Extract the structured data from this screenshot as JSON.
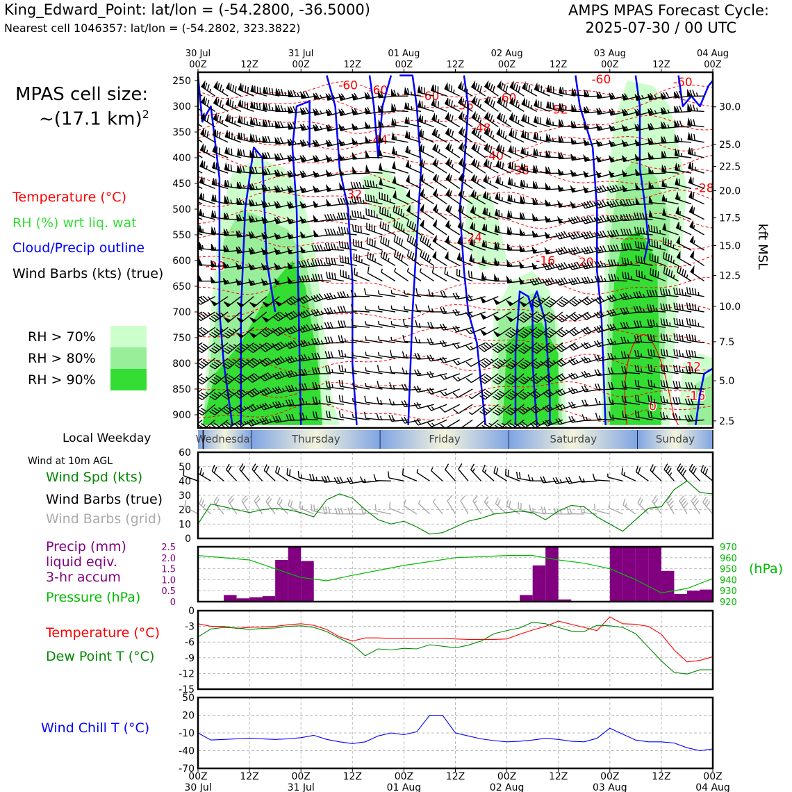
{
  "header": {
    "station": "King_Edward_Point: lat/lon = (-54.2800, -36.5000)",
    "nearest": "Nearest cell 1046357: lat/lon = (-54.2802, 323.3822)",
    "cycle_line1": "AMPS MPAS Forecast Cycle:",
    "cycle_line2": "2025-07-30 / 00 UTC",
    "cell_size_line1": "MPAS cell size:",
    "cell_size_line2": "~(17.1 km)",
    "cell_size_sup": "2"
  },
  "legend_upper": {
    "temperature": "Temperature (°C)",
    "rh": "RH (%) wrt liq. wat",
    "cloud": "Cloud/Precip outline",
    "barbs": "Wind Barbs (kts) (true)",
    "rh70": "RH > 70%",
    "rh80": "RH > 80%",
    "rh90": "RH > 90%",
    "weekday_label": "Local Weekday"
  },
  "legend_lower": {
    "wind10m": "Wind at 10m AGL",
    "windspd": "Wind Spd (kts)",
    "barbs_true": "Wind Barbs (true)",
    "barbs_grid": "Wind Barbs (grid)",
    "precip1": "Precip (mm)",
    "precip2": "liquid eqiv.",
    "precip3": "3-hr accum",
    "pressure": "Pressure (hPa)",
    "pressure_unit": "(hPa)",
    "temp": "Temperature (°C)",
    "dewpt": "Dew Point T (°C)",
    "windchill": "Wind Chill T (°C)"
  },
  "colors": {
    "temperature": "#ff0000",
    "rh": "#33dd33",
    "cloud": "#0000ff",
    "precip": "#800080",
    "pressure": "#00bb00",
    "dewpoint": "#008800",
    "windchill": "#0000ff",
    "windspd": "#008800",
    "barb_grid": "#aaaaaa",
    "rh70": "#ccffcc",
    "rh80": "#99ee99",
    "rh90": "#33dd33"
  },
  "chart_data": {
    "time_axis": {
      "ticks": [
        "00Z",
        "12Z",
        "00Z",
        "12Z",
        "00Z",
        "12Z",
        "00Z",
        "12Z",
        "00Z",
        "12Z",
        "00Z"
      ],
      "top_dates": [
        "30 Jul",
        "",
        "31 Jul",
        "",
        "01 Aug",
        "",
        "02 Aug",
        "",
        "03 Aug",
        "",
        "04 Aug"
      ],
      "bottom_dates": [
        "30 Jul",
        "",
        "31 Jul",
        "",
        "01 Aug",
        "",
        "02 Aug",
        "",
        "03 Aug",
        "",
        "04 Aug"
      ],
      "hours": [
        0,
        12,
        24,
        36,
        48,
        60,
        72,
        84,
        96,
        108,
        120
      ]
    },
    "weekdays": [
      "Wednesday",
      "Thursday",
      "Friday",
      "Saturday",
      "Sunday"
    ],
    "cross_section": {
      "type": "heatmap",
      "y_ticks_hpa": [
        250,
        300,
        350,
        400,
        450,
        500,
        550,
        600,
        650,
        700,
        750,
        800,
        850,
        900
      ],
      "y_ticks_kft": [
        "30.0",
        "25.0",
        "22.5",
        "20.0",
        "17.5",
        "15.0",
        "12.5",
        "10.0",
        "7.5",
        "5.0",
        "2.5"
      ],
      "kft_positions_hpa": [
        301,
        374,
        417,
        464,
        517,
        571,
        629,
        689,
        758,
        834,
        912
      ],
      "right_label": "kft MSL",
      "temp_contour_labels": [
        {
          "t": 35,
          "p": 259,
          "v": "-60"
        },
        {
          "t": 42,
          "p": 268,
          "v": "-60"
        },
        {
          "t": 54,
          "p": 280,
          "v": "-60"
        },
        {
          "t": 72,
          "p": 283,
          "v": "-60"
        },
        {
          "t": 94,
          "p": 247,
          "v": "-60"
        },
        {
          "t": 113,
          "p": 253,
          "v": "-60"
        },
        {
          "t": 62,
          "p": 298,
          "v": "-56"
        },
        {
          "t": 84,
          "p": 306,
          "v": "-52"
        },
        {
          "t": 66,
          "p": 342,
          "v": "-48"
        },
        {
          "t": 42,
          "p": 365,
          "v": "-44"
        },
        {
          "t": 69,
          "p": 396,
          "v": "-40"
        },
        {
          "t": 75,
          "p": 424,
          "v": "-36"
        },
        {
          "t": 36,
          "p": 471,
          "v": "-32"
        },
        {
          "t": 118,
          "p": 459,
          "v": "-28"
        },
        {
          "t": 64,
          "p": 555,
          "v": "-24"
        },
        {
          "t": 90,
          "p": 603,
          "v": "-20"
        },
        {
          "t": 4,
          "p": 610,
          "v": "-20"
        },
        {
          "t": 81,
          "p": 600,
          "v": "-16"
        },
        {
          "t": 115,
          "p": 806,
          "v": "-12"
        },
        {
          "t": 116,
          "p": 863,
          "v": "-16"
        },
        {
          "t": 106,
          "p": 883,
          "v": "0"
        }
      ]
    },
    "wind10m": {
      "type": "line",
      "ylim": [
        0,
        60
      ],
      "yticks": [
        0,
        10,
        20,
        30,
        40,
        50,
        60
      ],
      "hours": [
        0,
        3,
        6,
        9,
        12,
        15,
        18,
        21,
        24,
        27,
        30,
        33,
        36,
        39,
        42,
        45,
        48,
        51,
        54,
        57,
        60,
        63,
        66,
        69,
        72,
        75,
        78,
        81,
        84,
        87,
        90,
        93,
        96,
        99,
        102,
        105,
        108,
        111,
        114,
        117,
        120
      ],
      "speed_kts": [
        10,
        24,
        22,
        20,
        18,
        20,
        21,
        20,
        18,
        15,
        27,
        31,
        28,
        20,
        13,
        10,
        12,
        8,
        3,
        4,
        8,
        12,
        14,
        17,
        18,
        19,
        18,
        13,
        19,
        23,
        22,
        15,
        10,
        5,
        13,
        21,
        22,
        34,
        40,
        32,
        31
      ]
    },
    "precip_pressure": {
      "type": "bar",
      "precip_ylim": [
        0,
        2.5
      ],
      "precip_yticks": [
        0,
        0.5,
        1.0,
        1.5,
        2.0,
        2.5
      ],
      "pressure_ylim": [
        920,
        970
      ],
      "pressure_yticks": [
        920,
        930,
        940,
        950,
        960,
        970
      ],
      "precip_bins_start_hour": [
        6,
        9,
        12,
        15,
        18,
        21,
        24,
        27,
        30,
        33,
        36,
        39,
        42,
        45,
        48,
        51,
        54,
        57,
        60,
        63,
        66,
        69,
        72,
        75,
        78,
        81,
        84,
        87,
        90,
        93,
        96,
        99,
        102,
        105,
        108,
        111,
        114,
        117
      ],
      "precip_mm": [
        0.3,
        0.15,
        0.2,
        0.25,
        1.9,
        2.6,
        1.85,
        0,
        0,
        0,
        0,
        0,
        0,
        0,
        0,
        0,
        0,
        0,
        0,
        0,
        0,
        0,
        0,
        0.3,
        1.65,
        2.6,
        0.1,
        0,
        0,
        0,
        2.6,
        2.6,
        2.6,
        2.6,
        1.4,
        0.35,
        0.5,
        0.55
      ],
      "pressure_hours": [
        0,
        12,
        24,
        30,
        36,
        48,
        60,
        72,
        78,
        84,
        90,
        96,
        102,
        108,
        114,
        120
      ],
      "pressure_hpa": [
        962,
        958,
        942,
        939,
        944,
        953,
        960,
        962,
        962,
        958,
        955,
        950,
        940,
        928,
        932,
        941
      ]
    },
    "temp_dewpt": {
      "type": "line",
      "ylim": [
        -15,
        0
      ],
      "yticks": [
        0,
        -3,
        -6,
        -9,
        -12,
        -15
      ],
      "hours": [
        0,
        3,
        6,
        9,
        12,
        15,
        18,
        21,
        24,
        27,
        30,
        33,
        36,
        39,
        42,
        45,
        48,
        51,
        54,
        57,
        60,
        63,
        66,
        69,
        72,
        75,
        78,
        81,
        84,
        87,
        90,
        93,
        96,
        99,
        102,
        105,
        108,
        111,
        114,
        117,
        120
      ],
      "temperature_c": [
        -2.5,
        -3.0,
        -3.0,
        -3.4,
        -3.2,
        -3.1,
        -3.0,
        -2.7,
        -2.5,
        -2.8,
        -3.6,
        -5.0,
        -5.8,
        -5.2,
        -5.2,
        -5.3,
        -5.3,
        -5.3,
        -5.3,
        -5.3,
        -5.4,
        -5.5,
        -5.5,
        -5.5,
        -5.4,
        -4.5,
        -3.7,
        -3.0,
        -2.0,
        -2.6,
        -3.2,
        -3.8,
        -1.2,
        -2.5,
        -2.6,
        -3.0,
        -4.5,
        -7.5,
        -9.8,
        -9.5,
        -8.8
      ],
      "dewpoint_c": [
        -5.0,
        -3.5,
        -3.2,
        -3.3,
        -3.6,
        -3.4,
        -3.3,
        -3.0,
        -2.9,
        -3.2,
        -4.0,
        -5.3,
        -6.5,
        -8.6,
        -7.3,
        -7.5,
        -7.2,
        -7.3,
        -6.5,
        -6.8,
        -7.1,
        -6.6,
        -5.8,
        -4.4,
        -3.8,
        -3.3,
        -2.2,
        -2.5,
        -3.2,
        -3.9,
        -4.0,
        -2.8,
        -2.9,
        -3.2,
        -4.4,
        -7.0,
        -9.6,
        -11.8,
        -12.1,
        -11.3,
        -11.3
      ]
    },
    "windchill": {
      "type": "line",
      "ylim": [
        -70,
        50
      ],
      "yticks": [
        50,
        20,
        -10,
        -40,
        -70
      ],
      "hours": [
        0,
        3,
        6,
        9,
        12,
        15,
        18,
        21,
        24,
        27,
        30,
        33,
        36,
        39,
        42,
        45,
        48,
        51,
        54,
        57,
        60,
        63,
        66,
        69,
        72,
        75,
        78,
        81,
        84,
        87,
        90,
        93,
        96,
        99,
        102,
        105,
        108,
        111,
        114,
        117,
        120
      ],
      "windchill_c": [
        -10,
        -22,
        -21,
        -20,
        -19,
        -20,
        -21,
        -20,
        -18,
        -14,
        -21,
        -25,
        -28,
        -25,
        -15,
        -10,
        -13,
        -8,
        20,
        20,
        -10,
        -15,
        -20,
        -23,
        -25,
        -24,
        -22,
        -19,
        -21,
        -24,
        -25,
        -19,
        -2,
        -12,
        -22,
        -25,
        -25,
        -27,
        -35,
        -40,
        -37
      ]
    }
  }
}
